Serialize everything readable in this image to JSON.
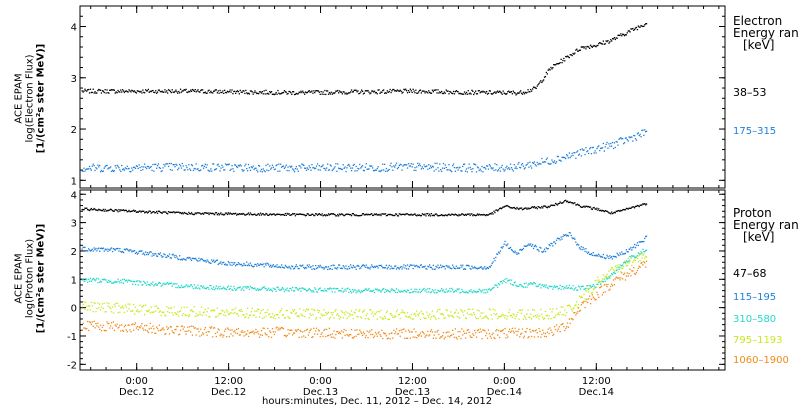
{
  "axis_title": "hours:minutes, Dec. 11, 2012 – Dec. 14, 2012",
  "x_ticks": [
    {
      "time": "0:00",
      "date": "Dec.12",
      "hours": 24
    },
    {
      "time": "12:00",
      "date": "Dec.12",
      "hours": 36
    },
    {
      "time": "0:00",
      "date": "Dec.13",
      "hours": 48
    },
    {
      "time": "12:00",
      "date": "Dec.13",
      "hours": 60
    },
    {
      "time": "0:00",
      "date": "Dec.14",
      "hours": 72
    },
    {
      "time": "12:00",
      "date": "Dec.14",
      "hours": 84
    }
  ],
  "x_range_hours": [
    16.6,
    100.8
  ],
  "data_end_hours": 90.5,
  "chart_data": [
    {
      "type": "scatter",
      "ylabel_lines": [
        "ACE EPAM",
        "log(Electron Flux)",
        "[1/(cm²s ster MeV)]"
      ],
      "ylim": [
        0.85,
        4.4
      ],
      "yticks": [
        1,
        2,
        3,
        4
      ],
      "legend_title_lines": [
        "Electron",
        "Energy ran",
        "[keV]"
      ],
      "series": [
        {
          "name": "38–53",
          "color": "#000000",
          "x": [
            16.6,
            30,
            45,
            60,
            70,
            74,
            76,
            78,
            80,
            82,
            84,
            86,
            88,
            90.5
          ],
          "y": [
            2.75,
            2.75,
            2.72,
            2.75,
            2.72,
            2.72,
            2.8,
            3.2,
            3.4,
            3.6,
            3.65,
            3.75,
            3.9,
            4.08
          ]
        },
        {
          "name": "175–315",
          "color": "#1f7fd8",
          "x": [
            16.6,
            30,
            45,
            60,
            70,
            74,
            78,
            82,
            86,
            90.5
          ],
          "y": [
            1.25,
            1.27,
            1.25,
            1.27,
            1.25,
            1.28,
            1.4,
            1.55,
            1.7,
            1.95
          ]
        }
      ]
    },
    {
      "type": "scatter",
      "ylabel_lines": [
        "ACE EPAM",
        "log(Proton Flux)",
        "[1/(cm²s ster MeV)]"
      ],
      "ylim": [
        -2.2,
        4.15
      ],
      "yticks": [
        -2,
        -1,
        0,
        1,
        2,
        3,
        4
      ],
      "legend_title_lines": [
        "Proton",
        "Energy ran",
        "[keV]"
      ],
      "series": [
        {
          "name": "47–68",
          "color": "#000000",
          "x": [
            16.6,
            30,
            45,
            60,
            70,
            72,
            74,
            76,
            78,
            80,
            82,
            84,
            86,
            88,
            90.5
          ],
          "y": [
            3.5,
            3.35,
            3.3,
            3.3,
            3.3,
            3.6,
            3.5,
            3.55,
            3.6,
            3.8,
            3.6,
            3.5,
            3.35,
            3.5,
            3.7
          ]
        },
        {
          "name": "115–195",
          "color": "#1f7fd8",
          "x": [
            16.6,
            22,
            28,
            35,
            45,
            55,
            65,
            70,
            72,
            73.5,
            75,
            77,
            79,
            80.5,
            82,
            84,
            86,
            88,
            90.5
          ],
          "y": [
            2.1,
            2.05,
            1.85,
            1.6,
            1.45,
            1.45,
            1.45,
            1.45,
            2.3,
            1.9,
            2.3,
            2.0,
            2.45,
            2.6,
            2.1,
            1.85,
            1.8,
            2.0,
            2.5
          ]
        },
        {
          "name": "310–580",
          "color": "#22d8c8",
          "x": [
            16.6,
            22,
            28,
            35,
            45,
            55,
            65,
            70,
            72,
            74,
            76,
            78,
            80,
            82,
            84,
            86,
            88,
            90.5
          ],
          "y": [
            1.0,
            0.95,
            0.82,
            0.72,
            0.65,
            0.62,
            0.62,
            0.62,
            1.0,
            0.8,
            0.85,
            0.7,
            0.75,
            0.7,
            0.8,
            1.2,
            1.7,
            2.1
          ]
        },
        {
          "name": "795–1193",
          "color": "#c8e81e",
          "x": [
            16.6,
            22,
            28,
            35,
            45,
            55,
            65,
            70,
            74,
            78,
            80,
            82,
            84,
            86,
            88,
            90.5
          ],
          "y": [
            0.05,
            0.0,
            -0.1,
            -0.15,
            -0.2,
            -0.22,
            -0.22,
            -0.2,
            -0.22,
            -0.2,
            -0.1,
            0.3,
            0.9,
            1.3,
            1.6,
            1.9
          ]
        },
        {
          "name": "1060–1900",
          "color": "#f08a18",
          "x": [
            16.6,
            22,
            28,
            35,
            45,
            55,
            65,
            70,
            74,
            78,
            80,
            82,
            84,
            86,
            88,
            90.5
          ],
          "y": [
            -0.6,
            -0.65,
            -0.75,
            -0.85,
            -0.85,
            -0.9,
            -0.9,
            -0.9,
            -0.88,
            -0.85,
            -0.6,
            0.1,
            0.5,
            0.9,
            1.2,
            1.6
          ]
        }
      ]
    }
  ]
}
